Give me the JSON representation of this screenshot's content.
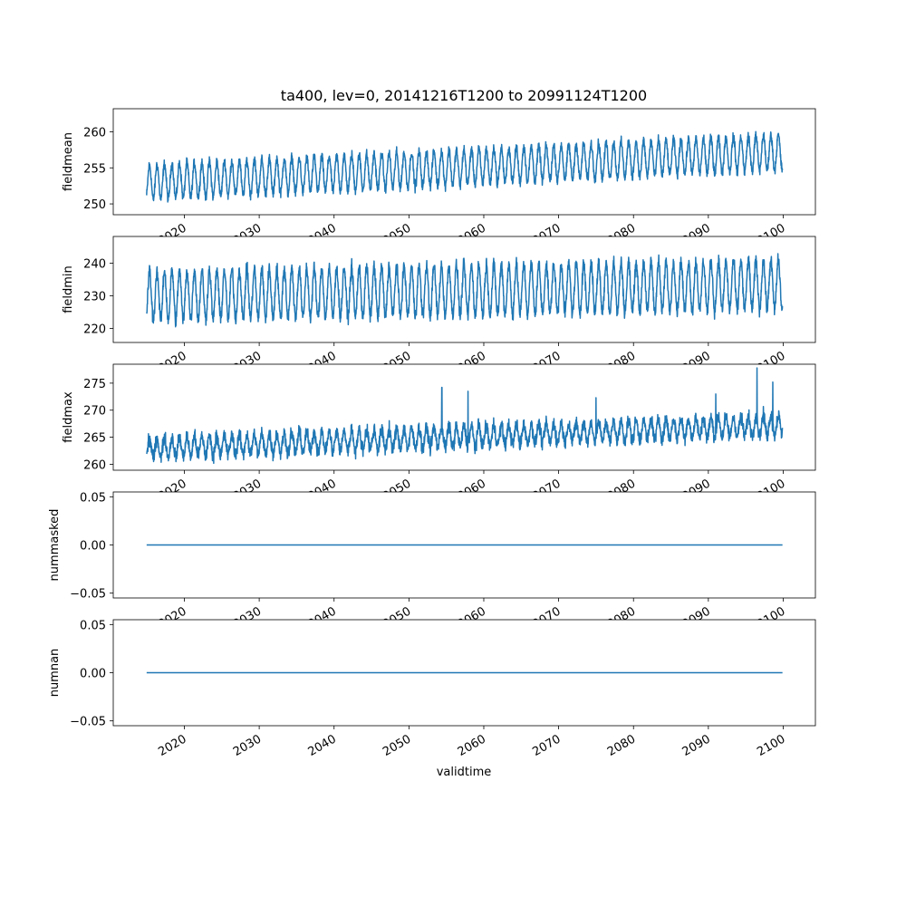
{
  "figure": {
    "title": "ta400, lev=0, 20141216T1200 to 20991124T1200",
    "xlabel": "validtime"
  },
  "colors": {
    "line": "#1f77b4",
    "axes": "#000000",
    "background": "#ffffff"
  },
  "chart_data": [
    {
      "type": "line",
      "ylabel": "fieldmean",
      "xlim": [
        2010.5,
        2104.3
      ],
      "ylim": [
        248.5,
        263.2
      ],
      "yticks": [
        "250",
        "255",
        "260"
      ],
      "xticks": [
        "2020",
        "2030",
        "2040",
        "2050",
        "2060",
        "2070",
        "2080",
        "2090",
        "2100"
      ],
      "series": [
        {
          "x_range": [
            "2014-12-16",
            "2099-11-24"
          ],
          "trend": [
            253.0,
            257.2
          ],
          "seasonal_amplitude": 2.4,
          "noise": 0.6
        }
      ]
    },
    {
      "type": "line",
      "ylabel": "fieldmin",
      "xlim": [
        2010.5,
        2104.3
      ],
      "ylim": [
        215.7,
        248.2
      ],
      "yticks": [
        "220",
        "230",
        "240"
      ],
      "xticks": [
        "2020",
        "2030",
        "2040",
        "2050",
        "2060",
        "2070",
        "2080",
        "2090",
        "2100"
      ],
      "series": [
        {
          "x_range": [
            "2014-12-16",
            "2099-11-24"
          ],
          "trend": [
            230.0,
            233.5
          ],
          "seasonal_amplitude": 7.5,
          "noise": 1.8
        }
      ]
    },
    {
      "type": "line",
      "ylabel": "fieldmax",
      "xlim": [
        2010.5,
        2104.3
      ],
      "ylim": [
        258.9,
        278.5
      ],
      "yticks": [
        "260",
        "265",
        "270",
        "275"
      ],
      "xticks": [
        "2020",
        "2030",
        "2040",
        "2050",
        "2060",
        "2070",
        "2080",
        "2090",
        "2100"
      ],
      "series": [
        {
          "x_range": [
            "2014-12-16",
            "2099-11-24"
          ],
          "trend": [
            263.0,
            267.3
          ],
          "seasonal_amplitude": 1.8,
          "noise": 1.1,
          "spikes": [
            [
              2054.4,
              274.2
            ],
            [
              2057.9,
              273.5
            ],
            [
              2096.5,
              277.8
            ],
            [
              2098.6,
              275.2
            ],
            [
              2075.0,
              272.3
            ],
            [
              2091.0,
              273.0
            ]
          ]
        }
      ]
    },
    {
      "type": "line",
      "ylabel": "nummasked",
      "xlim": [
        2010.5,
        2104.3
      ],
      "ylim": [
        -0.055,
        0.055
      ],
      "yticks": [
        "0.05",
        "0.00",
        "−0.05"
      ],
      "xticks": [
        "2020",
        "2030",
        "2040",
        "2050",
        "2060",
        "2070",
        "2080",
        "2090",
        "2100"
      ],
      "series": [
        {
          "x": [
            2014.96,
            2099.9
          ],
          "y": [
            0.0,
            0.0
          ]
        }
      ]
    },
    {
      "type": "line",
      "ylabel": "numnan",
      "xlim": [
        2010.5,
        2104.3
      ],
      "ylim": [
        -0.055,
        0.055
      ],
      "yticks": [
        "0.05",
        "0.00",
        "−0.05"
      ],
      "xticks": [
        "2020",
        "2030",
        "2040",
        "2050",
        "2060",
        "2070",
        "2080",
        "2090",
        "2100"
      ],
      "series": [
        {
          "x": [
            2014.96,
            2099.9
          ],
          "y": [
            0.0,
            0.0
          ]
        }
      ]
    }
  ]
}
